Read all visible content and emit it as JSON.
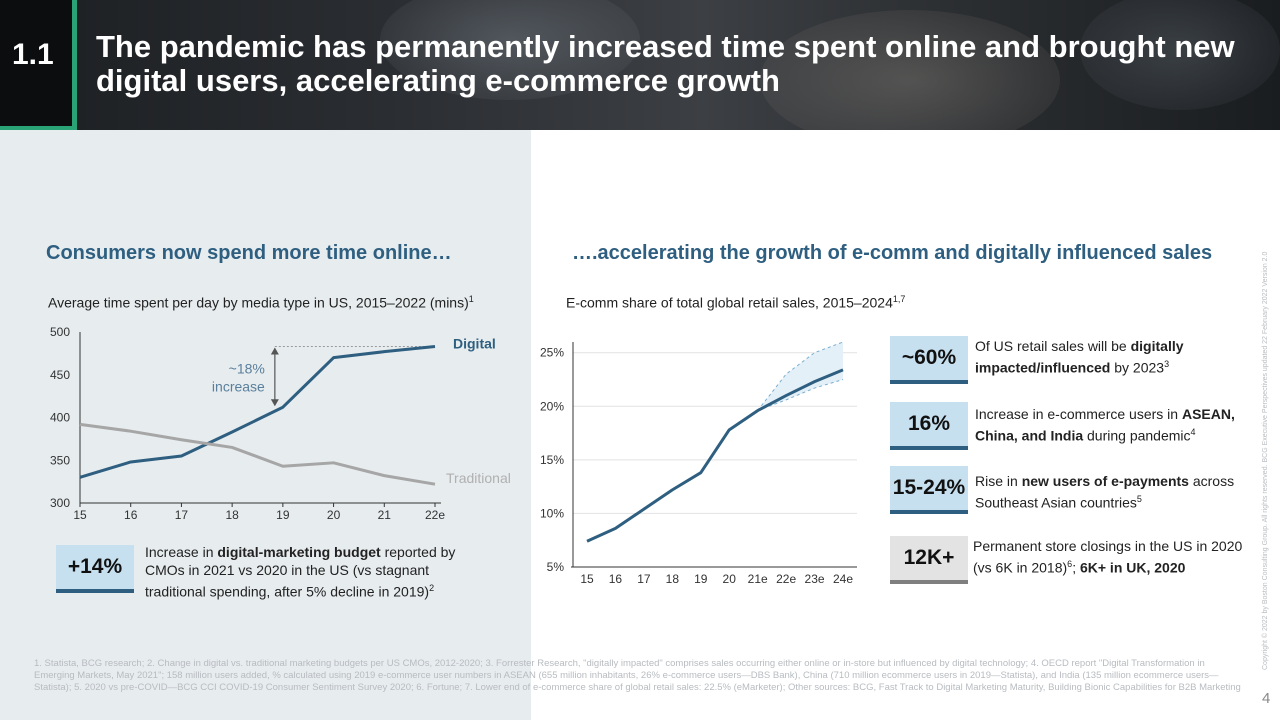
{
  "header": {
    "section_number": "1.1",
    "title": "The pandemic has permanently increased time spent online and brought new digital users, accelerating e-commerce growth"
  },
  "left": {
    "heading": "Consumers now spend more time online…",
    "subtitle": "Average time spent per day by media type in US, 2015–2022 (mins)",
    "subtitle_sup": "1",
    "annotation_line1": "~18%",
    "annotation_line2": "increase",
    "series_label_digital": "Digital",
    "series_label_traditional": "Traditional",
    "stat": {
      "value": "+14%",
      "text_pre": "Increase in ",
      "text_bold": "digital-marketing budget",
      "text_post": " reported by CMOs in 2021 vs 2020 in the US (vs stagnant traditional spending, after 5% decline in 2019)",
      "sup": "2"
    }
  },
  "right": {
    "heading": "….accelerating the growth of e-comm and digitally influenced sales",
    "subtitle": "E-comm share of total global retail sales, 2015–2024",
    "subtitle_sup": "1,7",
    "stats": [
      {
        "value": "~60%",
        "text_pre": "Of US retail sales will be ",
        "text_bold": "digitally impacted/influenced",
        "text_post": " by 2023",
        "sup": "3"
      },
      {
        "value": "16%",
        "text_pre": "Increase in e-commerce users in ",
        "text_bold": "ASEAN, China, and India",
        "text_post": " during pandemic",
        "sup": "4"
      },
      {
        "value": "15-24%",
        "text_pre": "Rise in ",
        "text_bold": "new users of e-payments",
        "text_post": " across Southeast Asian countries",
        "sup": "5"
      },
      {
        "value": "12K+",
        "text_pre": "Permanent store closings in the US in 2020 (vs 6K in 2018)",
        "sup": "6",
        "text_mid": "; ",
        "text_bold": "6K+ in UK, 2020",
        "text_post": ""
      }
    ]
  },
  "chart_data": [
    {
      "type": "line",
      "title": "Average time spent per day by media type in US, 2015–2022 (mins)",
      "categories": [
        "15",
        "16",
        "17",
        "18",
        "19",
        "20",
        "21",
        "22e"
      ],
      "ylim": [
        300,
        500
      ],
      "yticks": [
        "300",
        "350",
        "400",
        "450",
        "500"
      ],
      "series": [
        {
          "name": "Digital",
          "color": "#2f5f80",
          "values": [
            330,
            348,
            355,
            383,
            412,
            470,
            477,
            483
          ]
        },
        {
          "name": "Traditional",
          "color": "#a6a6a6",
          "values": [
            392,
            384,
            374,
            365,
            343,
            347,
            332,
            322
          ]
        }
      ],
      "annotation": "~18% increase",
      "legend": "inline-right"
    },
    {
      "type": "line",
      "title": "E-comm share of total global retail sales, 2015–2024",
      "categories": [
        "15",
        "16",
        "17",
        "18",
        "19",
        "20",
        "21e",
        "22e",
        "23e",
        "24e"
      ],
      "ylim": [
        5,
        26
      ],
      "yticks": [
        "5%",
        "10%",
        "15%",
        "20%",
        "25%"
      ],
      "series": [
        {
          "name": "",
          "color": "#2f5f80",
          "values": [
            7.4,
            8.6,
            10.4,
            12.2,
            13.8,
            17.8,
            19.6,
            21.0,
            22.3,
            23.4
          ]
        }
      ],
      "band_upper": [
        null,
        null,
        null,
        null,
        null,
        null,
        19.6,
        23.0,
        25.0,
        26.0
      ],
      "band_lower": [
        null,
        null,
        null,
        null,
        null,
        null,
        19.6,
        20.6,
        21.7,
        22.5
      ],
      "grid": true
    }
  ],
  "footnotes": "1. Statista, BCG research; 2. Change in digital vs. traditional marketing budgets per US CMOs, 2012-2020; 3. Forrester Research, \"digitally impacted\" comprises sales occurring either online or in-store but influenced by digital technology; 4. OECD report \"Digital Transformation in Emerging Markets, May 2021\"; 158 million users added, % calculated using 2019 e-commerce user numbers in ASEAN (655 million inhabitants, 26% e-commerce users—DBS Bank), China (710 million ecommerce users in 2019—Statista), and India (135 million ecommerce users—Statista); 5. 2020 vs pre-COVID—BCG CCI COVID-19 Consumer Sentiment Survey 2020; 6. Fortune; 7. Lower end of e-commerce share of global retail sales: 22.5% (eMarketer); Other sources: BCG, Fast Track to Digital Marketing Maturity, Building Bionic Capabilities for B2B Marketing",
  "copyright": "Copyright © 2022 by Boston Consulting Group. All rights reserved. BCG Executive Perspectives updated 22 February 2022 Version 2.0",
  "page_number": "4"
}
